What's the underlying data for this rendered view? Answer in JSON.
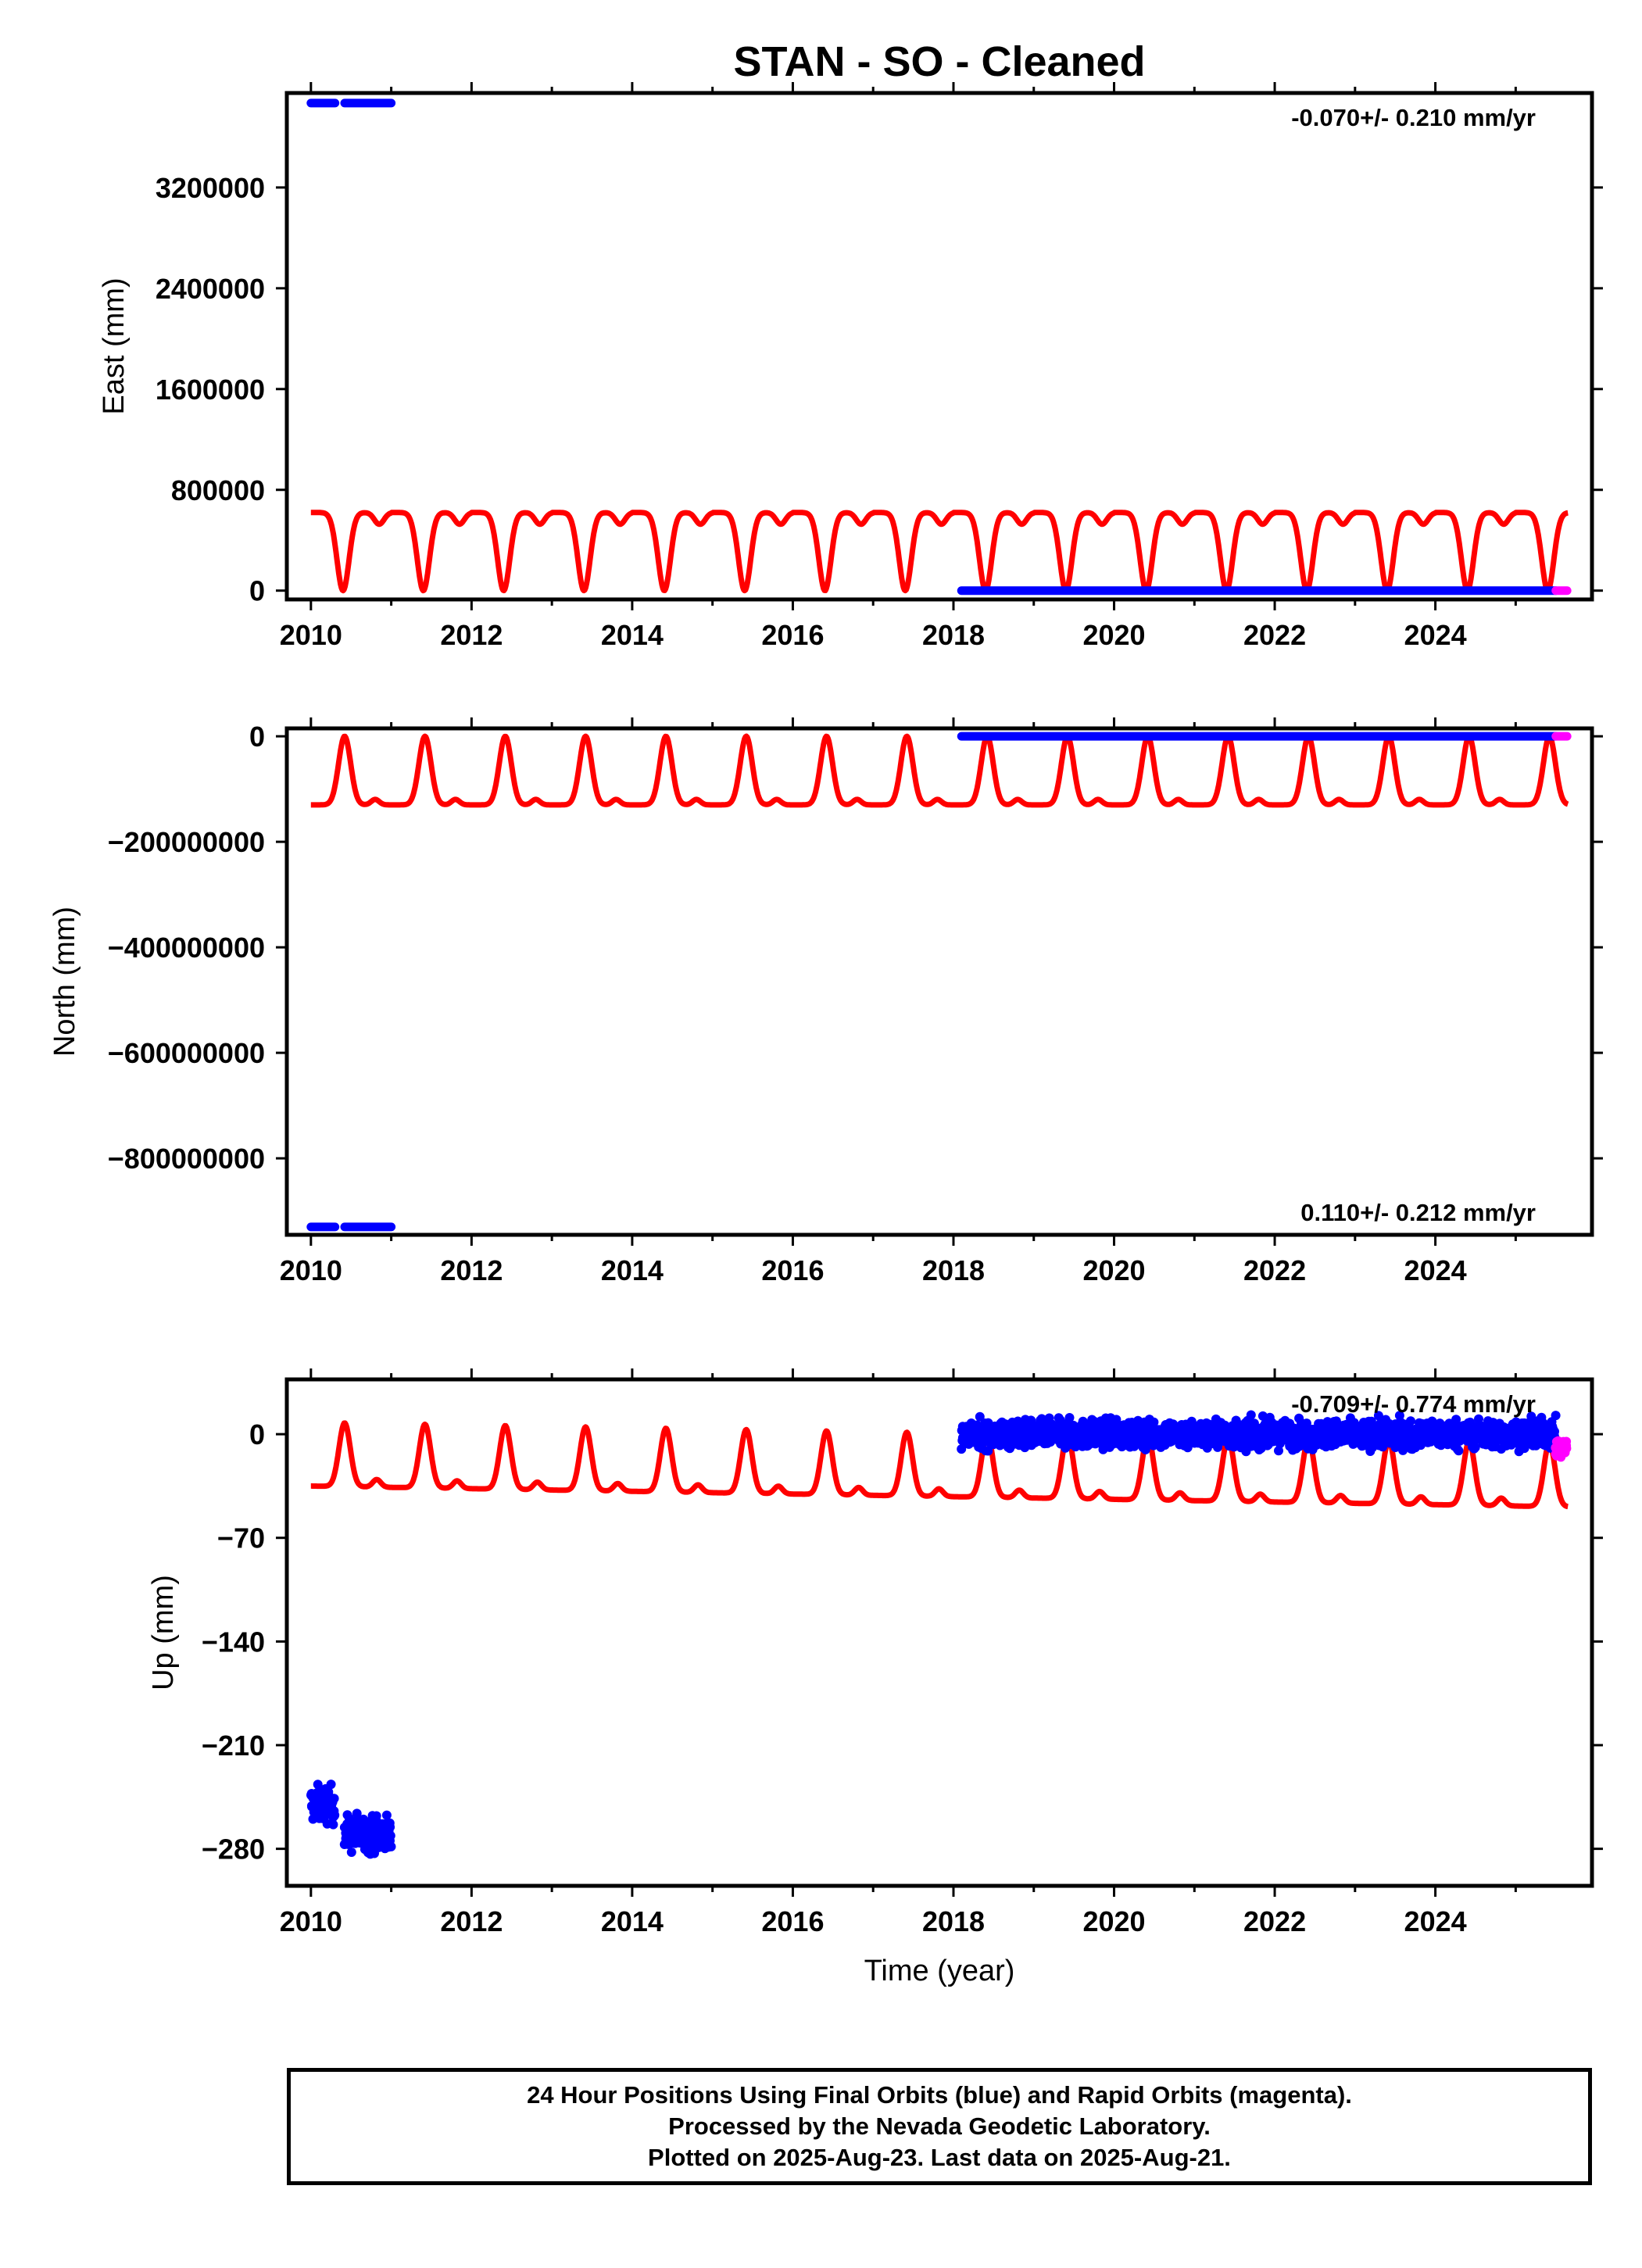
{
  "title": "STAN  - SO - Cleaned",
  "xlabel": "Time (year)",
  "footer": {
    "line1": "24 Hour Positions Using Final Orbits (blue) and Rapid Orbits (magenta).",
    "line2": "Processed by the Nevada Geodetic Laboratory.",
    "line3": "Plotted on 2025-Aug-23. Last data on 2025-Aug-21."
  },
  "colors": {
    "final": "#0000ff",
    "rapid": "#ff00ff",
    "model": "#ff0000",
    "axis": "#000000"
  },
  "chart_data": [
    {
      "type": "scatter",
      "ylabel": "East (mm)",
      "rate": "-0.070+/- 0.210 mm/yr",
      "rate_position": "top-right",
      "xlim": [
        2009.7,
        2025.95
      ],
      "ylim": [
        -70000,
        3950000
      ],
      "xticks": [
        2010,
        2012,
        2014,
        2016,
        2018,
        2020,
        2022,
        2024
      ],
      "yticks": [
        0,
        800000,
        1600000,
        2400000,
        3200000
      ],
      "ytick_labels": [
        "0",
        "800000",
        "1600000",
        "2400000",
        "3200000"
      ],
      "series": [
        {
          "name": "Final Orbits",
          "color": "#0000ff",
          "segments": [
            {
              "x_start": 2010.0,
              "x_end": 2010.3,
              "y": 3870000
            },
            {
              "x_start": 2010.42,
              "x_end": 2011.0,
              "y": 3870000
            },
            {
              "x_start": 2018.1,
              "x_end": 2025.5,
              "y": 0
            }
          ]
        },
        {
          "name": "Rapid Orbits",
          "color": "#ff00ff",
          "segments": [
            {
              "x_start": 2025.5,
              "x_end": 2025.64,
              "y": 0
            }
          ]
        }
      ],
      "model": {
        "color": "#ff0000",
        "shape": "east",
        "baseline": 0,
        "amplitude": 620000,
        "x_start": 2010.0,
        "x_end": 2025.65
      }
    },
    {
      "type": "scatter",
      "ylabel": "North (mm)",
      "rate": "0.110+/- 0.212 mm/yr",
      "rate_position": "bottom-right",
      "xlim": [
        2009.7,
        2025.95
      ],
      "ylim": [
        -945000000,
        15000000
      ],
      "xticks": [
        2010,
        2012,
        2014,
        2016,
        2018,
        2020,
        2022,
        2024
      ],
      "yticks": [
        0,
        -200000000,
        -400000000,
        -600000000,
        -800000000
      ],
      "ytick_labels": [
        "0",
        "−200000000",
        "−400000000",
        "−600000000",
        "−800000000"
      ],
      "series": [
        {
          "name": "Final Orbits",
          "color": "#0000ff",
          "segments": [
            {
              "x_start": 2010.0,
              "x_end": 2010.3,
              "y": -930000000
            },
            {
              "x_start": 2010.42,
              "x_end": 2011.0,
              "y": -930000000
            },
            {
              "x_start": 2018.1,
              "x_end": 2025.5,
              "y": 0
            }
          ]
        },
        {
          "name": "Rapid Orbits",
          "color": "#ff00ff",
          "segments": [
            {
              "x_start": 2025.5,
              "x_end": 2025.64,
              "y": 0
            }
          ]
        }
      ],
      "model": {
        "color": "#ff0000",
        "shape": "north",
        "baseline": -130000000,
        "amplitude": 130000000,
        "x_start": 2010.0,
        "x_end": 2025.65
      }
    },
    {
      "type": "scatter",
      "ylabel": "Up (mm)",
      "rate": "-0.709+/- 0.774 mm/yr",
      "rate_position": "top-right",
      "xlim": [
        2009.7,
        2025.95
      ],
      "ylim": [
        -305,
        37
      ],
      "xticks": [
        2010,
        2012,
        2014,
        2016,
        2018,
        2020,
        2022,
        2024
      ],
      "yticks": [
        0,
        -70,
        -140,
        -210,
        -280
      ],
      "ytick_labels": [
        "0",
        "−70",
        "−140",
        "−210",
        "−280"
      ],
      "series": [
        {
          "name": "Final Orbits",
          "color": "#0000ff",
          "clusters": [
            {
              "x_start": 2010.0,
              "x_end": 2010.3,
              "y_mean": -250,
              "y_spread": 12
            },
            {
              "x_start": 2010.42,
              "x_end": 2011.0,
              "y_mean": -270,
              "y_spread": 12
            },
            {
              "x_start": 2018.1,
              "x_end": 2025.5,
              "y_mean": 0,
              "y_spread": 9
            }
          ]
        },
        {
          "name": "Rapid Orbits",
          "color": "#ff00ff",
          "clusters": [
            {
              "x_start": 2025.5,
              "x_end": 2025.64,
              "y_mean": -10,
              "y_spread": 7
            }
          ]
        }
      ],
      "model": {
        "color": "#ff0000",
        "shape": "up",
        "baseline_2010": -35,
        "baseline_slope_per_year": -0.9,
        "amplitude": 43,
        "x_start": 2010.0,
        "x_end": 2025.65
      }
    }
  ]
}
